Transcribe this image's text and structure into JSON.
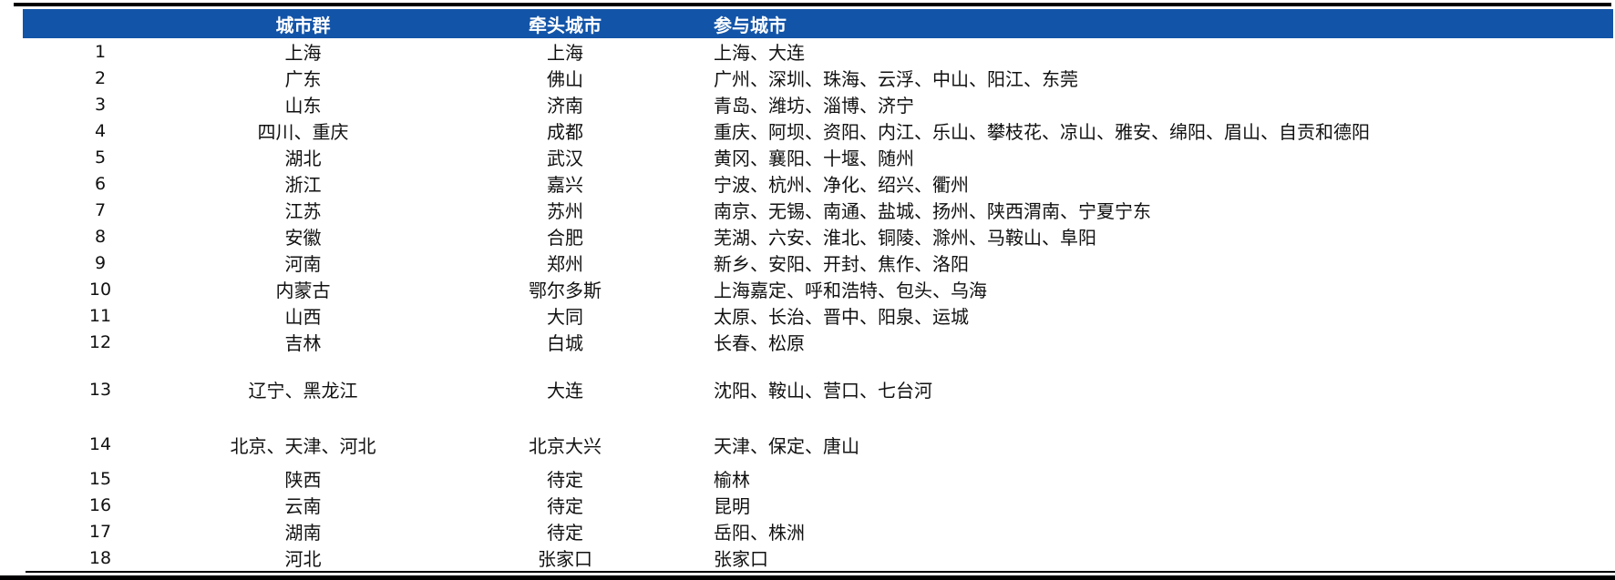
{
  "colors": {
    "header_bg": "#1254A8",
    "header_text": "#FFFFFF",
    "body_text": "#111111",
    "rule": "#000000"
  },
  "table": {
    "columns": [
      {
        "key": "index",
        "label": ""
      },
      {
        "key": "cluster",
        "label": "城市群"
      },
      {
        "key": "lead",
        "label": "牵头城市"
      },
      {
        "key": "participants",
        "label": "参与城市"
      }
    ],
    "rows": [
      {
        "index": "1",
        "cluster": "上海",
        "lead": "上海",
        "participants": "上海、大连",
        "size": "normal"
      },
      {
        "index": "2",
        "cluster": "广东",
        "lead": "佛山",
        "participants": "广州、深圳、珠海、云浮、中山、阳江、东莞",
        "size": "normal"
      },
      {
        "index": "3",
        "cluster": "山东",
        "lead": "济南",
        "participants": "青岛、潍坊、淄博、济宁",
        "size": "normal"
      },
      {
        "index": "4",
        "cluster": "四川、重庆",
        "lead": "成都",
        "participants": "重庆、阿坝、资阳、内江、乐山、攀枝花、凉山、雅安、绵阳、眉山、自贡和德阳",
        "size": "normal"
      },
      {
        "index": "5",
        "cluster": "湖北",
        "lead": "武汉",
        "participants": "黄冈、襄阳、十堰、随州",
        "size": "normal"
      },
      {
        "index": "6",
        "cluster": "浙江",
        "lead": "嘉兴",
        "participants": "宁波、杭州、净化、绍兴、衢州",
        "size": "normal"
      },
      {
        "index": "7",
        "cluster": "江苏",
        "lead": "苏州",
        "participants": "南京、无锡、南通、盐城、扬州、陕西渭南、宁夏宁东",
        "size": "normal"
      },
      {
        "index": "8",
        "cluster": "安徽",
        "lead": "合肥",
        "participants": "芜湖、六安、淮北、铜陵、滁州、马鞍山、阜阳",
        "size": "normal"
      },
      {
        "index": "9",
        "cluster": "河南",
        "lead": "郑州",
        "participants": "新乡、安阳、开封、焦作、洛阳",
        "size": "normal"
      },
      {
        "index": "10",
        "cluster": "内蒙古",
        "lead": "鄂尔多斯",
        "participants": "上海嘉定、呼和浩特、包头、乌海",
        "size": "normal"
      },
      {
        "index": "11",
        "cluster": "山西",
        "lead": "大同",
        "participants": "太原、长治、晋中、阳泉、运城",
        "size": "normal"
      },
      {
        "index": "12",
        "cluster": "吉林",
        "lead": "白城",
        "participants": "长春、松原",
        "size": "normal"
      },
      {
        "index": "13",
        "cluster": "辽宁、黑龙江",
        "lead": "大连",
        "participants": "沈阳、鞍山、营口、七台河",
        "size": "tall"
      },
      {
        "index": "14",
        "cluster": "北京、天津、河北",
        "lead": "北京大兴",
        "participants": "天津、保定、唐山",
        "size": "medium"
      },
      {
        "index": "15",
        "cluster": "陕西",
        "lead": "待定",
        "participants": "榆林",
        "size": "normal"
      },
      {
        "index": "16",
        "cluster": "云南",
        "lead": "待定",
        "participants": "昆明",
        "size": "normal"
      },
      {
        "index": "17",
        "cluster": "湖南",
        "lead": "待定",
        "participants": "岳阳、株洲",
        "size": "normal"
      },
      {
        "index": "18",
        "cluster": "河北",
        "lead": "张家口",
        "participants": "张家口",
        "size": "normal"
      }
    ]
  }
}
